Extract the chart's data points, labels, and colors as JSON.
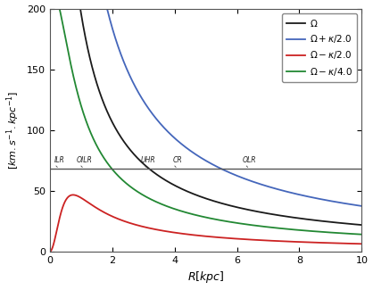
{
  "title": "",
  "xlabel": "$R[kpc]$",
  "ylabel": "$[km.s^{-1}.kpc^{-1}]$",
  "xlim": [
    0,
    10
  ],
  "ylim": [
    0,
    200
  ],
  "xticks": [
    0,
    2,
    4,
    6,
    8,
    10
  ],
  "yticks": [
    0,
    50,
    100,
    150,
    200
  ],
  "omega_b": 68.0,
  "legend_entries": [
    "$\\Omega$",
    "$\\Omega+\\kappa/2.0$",
    "$\\Omega-\\kappa/2.0$",
    "$\\Omega-\\kappa/4.0$"
  ],
  "legend_colors": [
    "#1a1a1a",
    "#4466bb",
    "#cc2222",
    "#228833"
  ],
  "resonances": {
    "ILR": 0.3,
    "OILR": 1.1,
    "UHR": 3.15,
    "CR": 4.1,
    "OLR": 6.4
  },
  "curve_colors": {
    "omega": "#1a1a1a",
    "omega_plus": "#4466bb",
    "omega_minus": "#cc2222",
    "omega_minus4": "#228833"
  },
  "v0": 220.0,
  "r0": 0.5,
  "background": "#ffffff"
}
